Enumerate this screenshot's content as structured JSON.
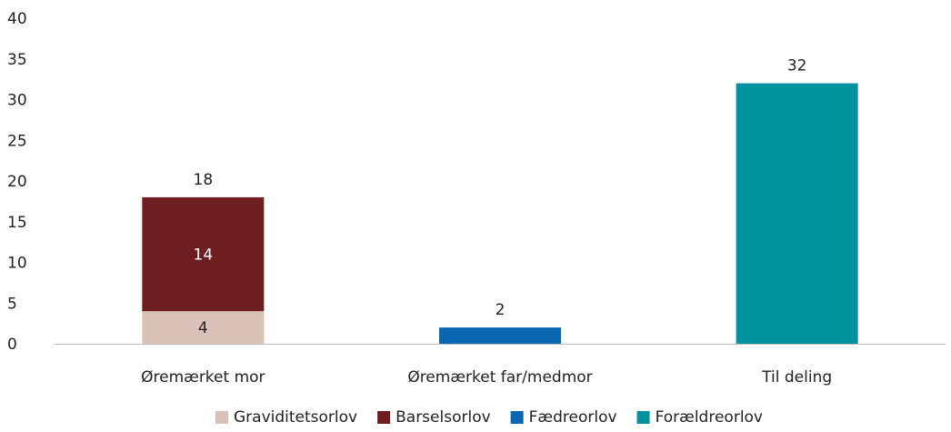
{
  "chart_data": {
    "type": "bar",
    "stacked": true,
    "categories": [
      "Øremærket mor",
      "Øremærket far/medmor",
      "Til deling"
    ],
    "series": [
      {
        "name": "Graviditetsorlov",
        "values": [
          4,
          0,
          0
        ],
        "color": "#D9C2B8",
        "label_color": "#222222"
      },
      {
        "name": "Barselsorlov",
        "values": [
          14,
          0,
          0
        ],
        "color": "#6E1E20",
        "label_color": "#ffffff"
      },
      {
        "name": "Fædreorlov",
        "values": [
          0,
          2,
          0
        ],
        "color": "#0A68B3",
        "label_color": "#ffffff"
      },
      {
        "name": "Forældreorlov",
        "values": [
          0,
          0,
          32
        ],
        "color": "#00929E",
        "label_color": "#ffffff"
      }
    ],
    "segment_labels": [
      {
        "category": 0,
        "series": 0,
        "text": "4"
      },
      {
        "category": 0,
        "series": 1,
        "text": "14"
      }
    ],
    "total_labels": [
      "18",
      "2",
      "32"
    ],
    "ylim": [
      0,
      40
    ],
    "yticks": [
      0,
      5,
      10,
      15,
      20,
      25,
      30,
      35,
      40
    ],
    "grid": false,
    "legend_position": "bottom-center",
    "title": "",
    "xlabel": "",
    "ylabel": ""
  }
}
